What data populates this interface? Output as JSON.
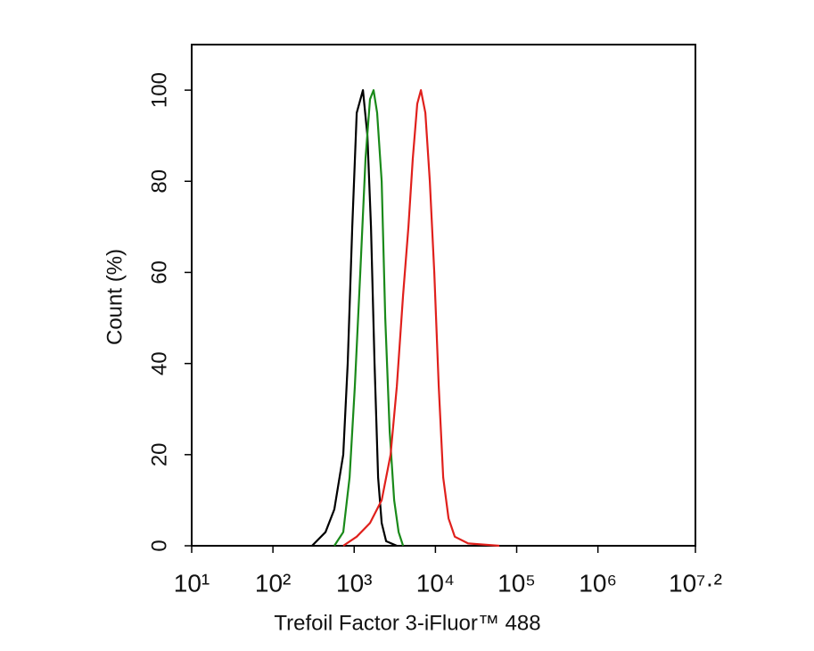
{
  "chart_data": {
    "type": "line",
    "x_label": "Trefoil Factor 3-iFluor™ 488",
    "y_label": "Count  (%)",
    "x_log": true,
    "xlim": [
      10,
      15848932
    ],
    "xticks": [
      {
        "value": 10,
        "label": "10¹"
      },
      {
        "value": 100,
        "label": "10²"
      },
      {
        "value": 1000,
        "label": "10³"
      },
      {
        "value": 10000,
        "label": "10⁴"
      },
      {
        "value": 100000,
        "label": "10⁵"
      },
      {
        "value": 1000000,
        "label": "10⁶"
      },
      {
        "value": 15848932,
        "label": "10⁷·²"
      }
    ],
    "ylim": [
      0,
      110
    ],
    "yticks": [
      0,
      20,
      40,
      60,
      80,
      100
    ],
    "series": [
      {
        "color": "#000000",
        "x": [
          303,
          444,
          570,
          734,
          833,
          946,
          1074,
          1282,
          1454,
          1608,
          1779,
          1968,
          2178,
          2472,
          3350
        ],
        "values": [
          0,
          3,
          8,
          20,
          40,
          70,
          95,
          100,
          90,
          70,
          40,
          15,
          5,
          1,
          0
        ]
      },
      {
        "color": "#1a8a1a",
        "x": [
          570,
          734,
          877,
          1020,
          1189,
          1381,
          1567,
          1733,
          1918,
          2178,
          2410,
          2736,
          3104,
          3524,
          4000
        ],
        "values": [
          0,
          3,
          15,
          35,
          60,
          85,
          98,
          100,
          95,
          80,
          50,
          25,
          10,
          3,
          0
        ]
      },
      {
        "color": "#e0201c",
        "x": [
          734,
          1074,
          1567,
          2178,
          2805,
          3350,
          4000,
          4650,
          5270,
          5980,
          6620,
          7510,
          8530,
          9680,
          10990,
          12470,
          14500,
          17300,
          25300,
          61200
        ],
        "values": [
          0,
          2,
          5,
          10,
          20,
          35,
          55,
          70,
          85,
          97,
          100,
          95,
          80,
          60,
          35,
          15,
          6,
          2,
          0.5,
          0
        ]
      }
    ]
  }
}
